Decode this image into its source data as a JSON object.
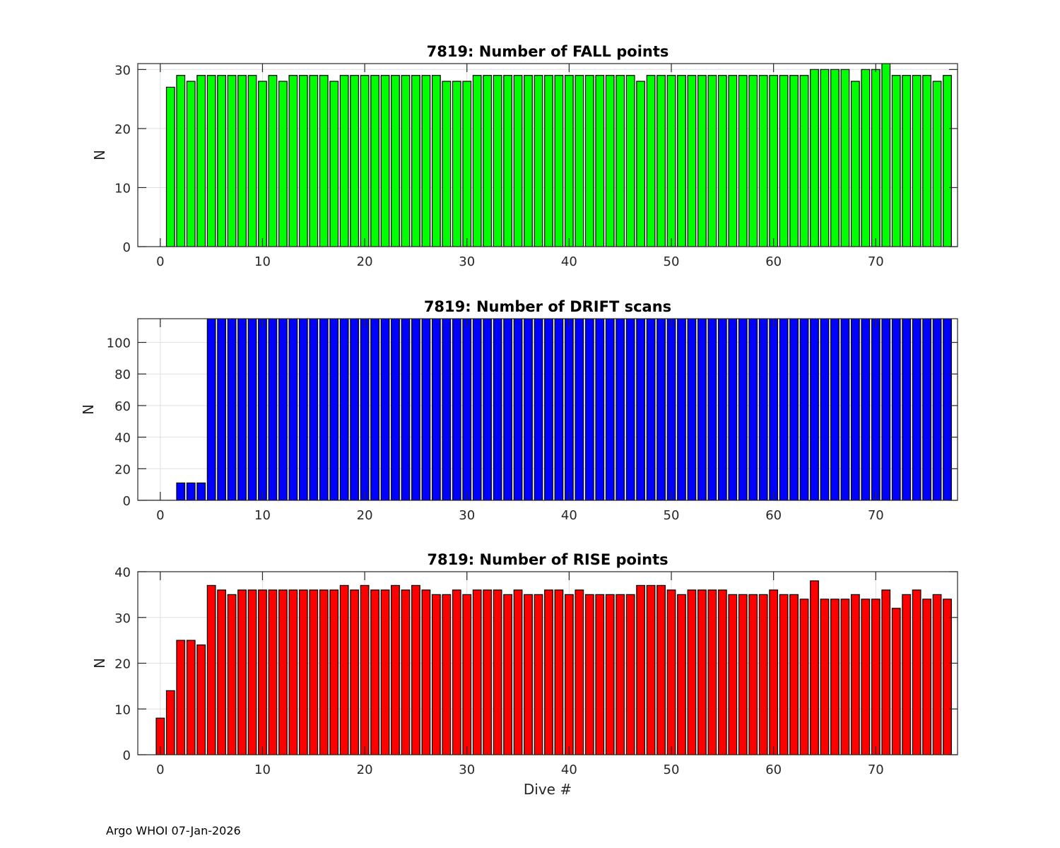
{
  "footer": "Argo WHOI 07-Jan-2026",
  "chart_data": [
    {
      "type": "bar",
      "title": "7819: Number of FALL points",
      "xlabel": "",
      "ylabel": "N",
      "color": "#00ff00",
      "xlim": [
        -2.2,
        78
      ],
      "ylim": [
        0,
        31
      ],
      "xticks": [
        0,
        10,
        20,
        30,
        40,
        50,
        60,
        70
      ],
      "yticks": [
        0,
        10,
        20,
        30
      ],
      "grid": true,
      "x": [
        1,
        2,
        3,
        4,
        5,
        6,
        7,
        8,
        9,
        10,
        11,
        12,
        13,
        14,
        15,
        16,
        17,
        18,
        19,
        20,
        21,
        22,
        23,
        24,
        25,
        26,
        27,
        28,
        29,
        30,
        31,
        32,
        33,
        34,
        35,
        36,
        37,
        38,
        39,
        40,
        41,
        42,
        43,
        44,
        45,
        46,
        47,
        48,
        49,
        50,
        51,
        52,
        53,
        54,
        55,
        56,
        57,
        58,
        59,
        60,
        61,
        62,
        63,
        64,
        65,
        66,
        67,
        68,
        69,
        70,
        71,
        72,
        73,
        74,
        75,
        76,
        77
      ],
      "values": [
        27,
        29,
        28,
        29,
        29,
        29,
        29,
        29,
        29,
        28,
        29,
        28,
        29,
        29,
        29,
        29,
        28,
        29,
        29,
        29,
        29,
        29,
        29,
        29,
        29,
        29,
        29,
        28,
        28,
        28,
        29,
        29,
        29,
        29,
        29,
        29,
        29,
        29,
        29,
        29,
        29,
        29,
        29,
        29,
        29,
        29,
        28,
        29,
        29,
        29,
        29,
        29,
        29,
        29,
        29,
        29,
        29,
        29,
        29,
        29,
        29,
        29,
        29,
        30,
        30,
        30,
        30,
        28,
        30,
        30,
        31,
        29,
        29,
        29,
        29,
        28,
        29
      ]
    },
    {
      "type": "bar",
      "title": "7819: Number of DRIFT scans",
      "xlabel": "",
      "ylabel": "N",
      "color": "#0000ff",
      "xlim": [
        -2.2,
        78
      ],
      "ylim": [
        0,
        115
      ],
      "xticks": [
        0,
        10,
        20,
        30,
        40,
        50,
        60,
        70
      ],
      "yticks": [
        0,
        20,
        40,
        60,
        80,
        100
      ],
      "grid": true,
      "x": [
        -1,
        0,
        1,
        2,
        3,
        4,
        5,
        6,
        7,
        8,
        9,
        10,
        11,
        12,
        13,
        14,
        15,
        16,
        17,
        18,
        19,
        20,
        21,
        22,
        23,
        24,
        25,
        26,
        27,
        28,
        29,
        30,
        31,
        32,
        33,
        34,
        35,
        36,
        37,
        38,
        39,
        40,
        41,
        42,
        43,
        44,
        45,
        46,
        47,
        48,
        49,
        50,
        51,
        52,
        53,
        54,
        55,
        56,
        57,
        58,
        59,
        60,
        61,
        62,
        63,
        64,
        65,
        66,
        67,
        68,
        69,
        70,
        71,
        72,
        73,
        74,
        75,
        76,
        77
      ],
      "values": [
        0,
        0,
        0,
        11,
        11,
        11,
        120,
        120,
        120,
        120,
        120,
        120,
        120,
        120,
        120,
        120,
        120,
        120,
        120,
        120,
        120,
        120,
        120,
        120,
        120,
        120,
        120,
        120,
        120,
        120,
        120,
        120,
        120,
        120,
        120,
        120,
        120,
        120,
        120,
        120,
        120,
        120,
        120,
        120,
        120,
        120,
        120,
        120,
        120,
        120,
        120,
        120,
        120,
        120,
        120,
        120,
        120,
        120,
        120,
        120,
        120,
        120,
        120,
        120,
        120,
        120,
        120,
        120,
        120,
        120,
        120,
        120,
        120,
        120,
        120,
        120,
        120,
        120,
        120
      ]
    },
    {
      "type": "bar",
      "title": "7819: Number of RISE points",
      "xlabel": "Dive #",
      "ylabel": "N",
      "color": "#ff0000",
      "xlim": [
        -2.2,
        78
      ],
      "ylim": [
        0,
        40
      ],
      "xticks": [
        0,
        10,
        20,
        30,
        40,
        50,
        60,
        70
      ],
      "yticks": [
        0,
        10,
        20,
        30,
        40
      ],
      "grid": true,
      "x": [
        0,
        1,
        2,
        3,
        4,
        5,
        6,
        7,
        8,
        9,
        10,
        11,
        12,
        13,
        14,
        15,
        16,
        17,
        18,
        19,
        20,
        21,
        22,
        23,
        24,
        25,
        26,
        27,
        28,
        29,
        30,
        31,
        32,
        33,
        34,
        35,
        36,
        37,
        38,
        39,
        40,
        41,
        42,
        43,
        44,
        45,
        46,
        47,
        48,
        49,
        50,
        51,
        52,
        53,
        54,
        55,
        56,
        57,
        58,
        59,
        60,
        61,
        62,
        63,
        64,
        65,
        66,
        67,
        68,
        69,
        70,
        71,
        72,
        73,
        74,
        75,
        76,
        77
      ],
      "values": [
        8,
        14,
        25,
        25,
        24,
        37,
        36,
        35,
        36,
        36,
        36,
        36,
        36,
        36,
        36,
        36,
        36,
        36,
        37,
        36,
        37,
        36,
        36,
        37,
        36,
        37,
        36,
        35,
        35,
        36,
        35,
        36,
        36,
        36,
        35,
        36,
        35,
        35,
        36,
        36,
        35,
        36,
        35,
        35,
        35,
        35,
        35,
        37,
        37,
        37,
        36,
        35,
        36,
        36,
        36,
        36,
        35,
        35,
        35,
        35,
        36,
        35,
        35,
        34,
        38,
        34,
        34,
        34,
        35,
        34,
        34,
        36,
        32,
        35,
        36,
        34,
        35,
        34
      ]
    }
  ]
}
